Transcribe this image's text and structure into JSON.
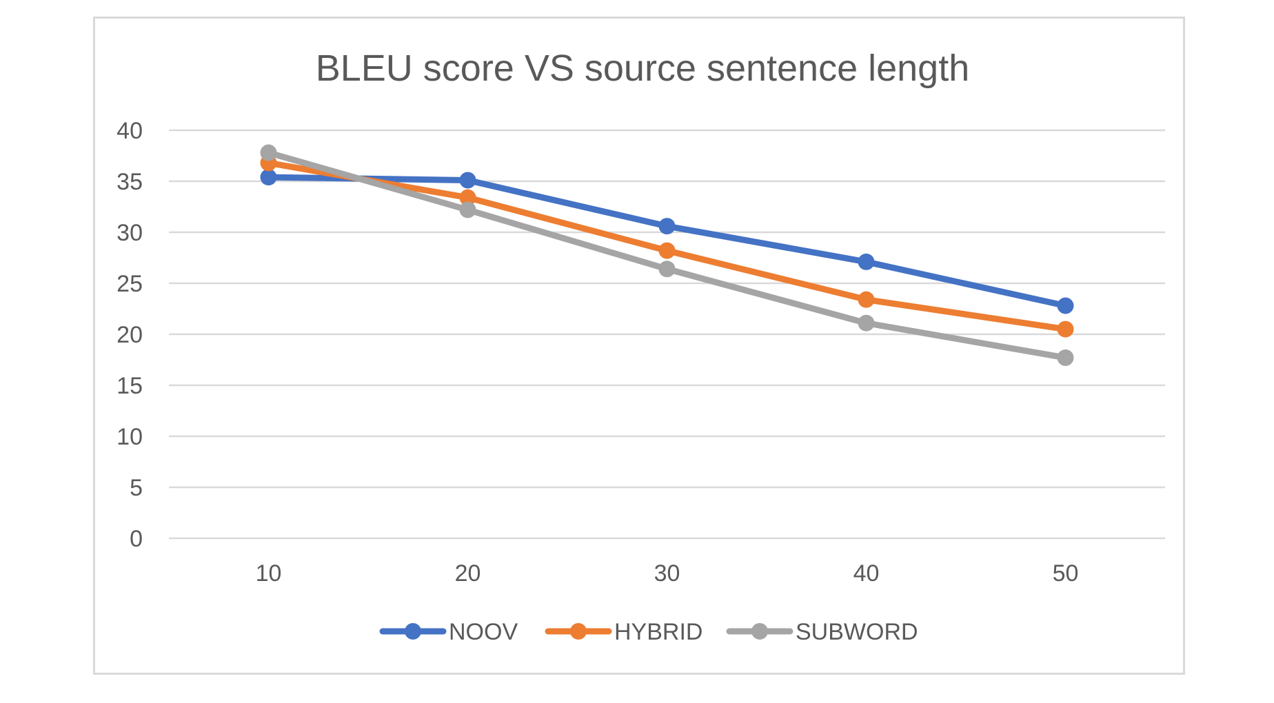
{
  "chart_data": {
    "type": "line",
    "title": "BLEU score VS source sentence length",
    "xlabel": "",
    "ylabel": "",
    "categories": [
      "10",
      "20",
      "30",
      "40",
      "50"
    ],
    "ylim": [
      0,
      40
    ],
    "yticks": [
      "0",
      "5",
      "10",
      "15",
      "20",
      "25",
      "30",
      "35",
      "40"
    ],
    "grid": true,
    "legend_position": "bottom",
    "series": [
      {
        "name": "NOOV",
        "color": "#4472c4",
        "values": [
          35.4,
          35.1,
          30.6,
          27.1,
          22.8
        ]
      },
      {
        "name": "HYBRID",
        "color": "#ed7d31",
        "values": [
          36.8,
          33.4,
          28.2,
          23.4,
          20.5
        ]
      },
      {
        "name": "SUBWORD",
        "color": "#a5a5a5",
        "values": [
          37.8,
          32.2,
          26.4,
          21.1,
          17.7
        ]
      }
    ]
  }
}
